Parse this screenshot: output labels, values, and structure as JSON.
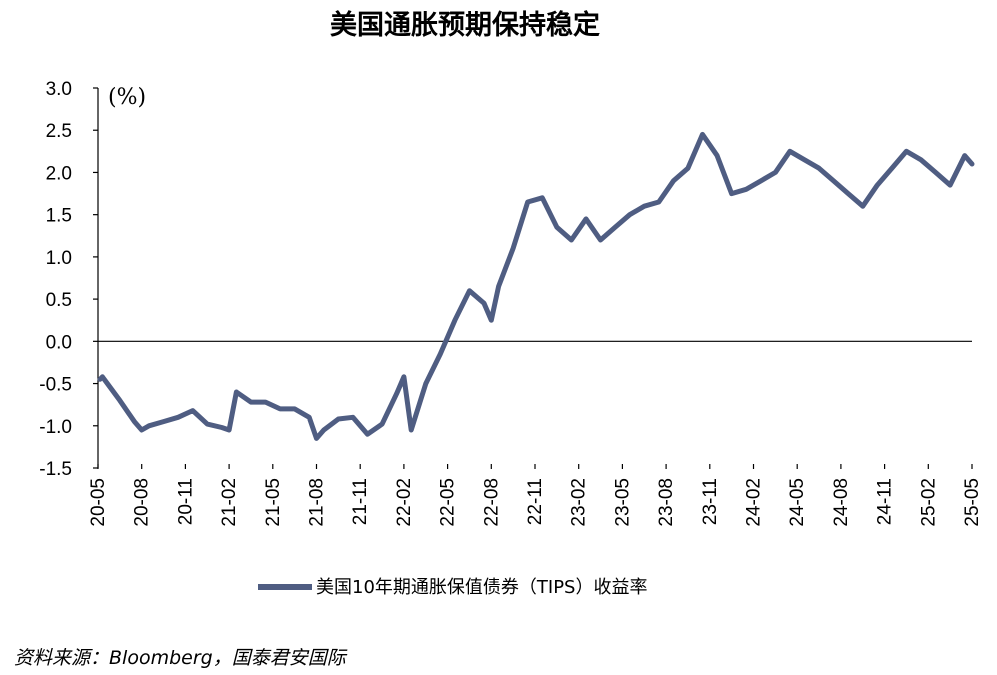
{
  "chart_data": {
    "type": "line",
    "title": "美国通胀预期保持稳定",
    "unit_label": "(%)",
    "ylim": [
      -1.5,
      3.0
    ],
    "yticks": [
      "3.0",
      "2.5",
      "2.0",
      "1.5",
      "1.0",
      "0.5",
      "0.0",
      "-0.5",
      "-1.0",
      "-1.5"
    ],
    "x_start": "20-05",
    "x_end": "25-05",
    "xticks": [
      "20-05",
      "20-08",
      "20-11",
      "21-02",
      "21-05",
      "21-08",
      "21-11",
      "22-02",
      "22-05",
      "22-08",
      "22-11",
      "23-02",
      "23-05",
      "23-08",
      "23-11",
      "24-02",
      "24-05",
      "24-08",
      "24-11",
      "25-02",
      "25-05"
    ],
    "zero_line": true,
    "grid": false,
    "legend_position": "bottom-center",
    "series": [
      {
        "name": "美国10年期通胀保值债券（TIPS）收益率",
        "color": "#4F5D82",
        "x": [
          "20-05",
          "20-05",
          "20-06",
          "20-07",
          "20-08",
          "20-08",
          "20-09",
          "20-10",
          "20-11",
          "20-12",
          "21-01",
          "21-02",
          "21-02",
          "21-03",
          "21-04",
          "21-05",
          "21-06",
          "21-07",
          "21-08",
          "21-08",
          "21-09",
          "21-10",
          "21-11",
          "21-12",
          "22-01",
          "22-02",
          "22-02",
          "22-03",
          "22-04",
          "22-05",
          "22-05",
          "22-06",
          "22-07",
          "22-08",
          "22-08",
          "22-09",
          "22-10",
          "22-11",
          "22-12",
          "23-01",
          "23-02",
          "23-03",
          "23-04",
          "23-05",
          "23-06",
          "23-07",
          "23-08",
          "23-09",
          "23-10",
          "23-11",
          "23-12",
          "24-01",
          "24-02",
          "24-03",
          "24-04",
          "24-05",
          "24-06",
          "24-07",
          "24-08",
          "24-09",
          "24-10",
          "24-11",
          "24-12",
          "25-01",
          "25-02",
          "25-03",
          "25-04",
          "25-05"
        ],
        "values": [
          -0.45,
          -0.42,
          -0.7,
          -0.95,
          -1.05,
          -1.0,
          -0.95,
          -0.9,
          -0.82,
          -0.98,
          -1.02,
          -1.05,
          -0.6,
          -0.72,
          -0.72,
          -0.8,
          -0.8,
          -0.9,
          -1.15,
          -1.05,
          -0.92,
          -0.9,
          -1.1,
          -0.98,
          -0.62,
          -0.42,
          -1.05,
          -0.5,
          -0.15,
          0.05,
          0.25,
          0.6,
          0.45,
          0.25,
          0.65,
          1.1,
          1.65,
          1.7,
          1.35,
          1.2,
          1.45,
          1.2,
          1.35,
          1.5,
          1.6,
          1.65,
          1.9,
          2.05,
          2.45,
          2.2,
          1.75,
          1.8,
          1.9,
          2.0,
          2.25,
          2.15,
          2.05,
          1.9,
          1.75,
          1.6,
          1.85,
          2.05,
          2.25,
          2.15,
          2.0,
          1.85,
          2.2,
          2.1
        ]
      }
    ]
  },
  "source_note": "资料来源：Bloomberg，国泰君安国际"
}
